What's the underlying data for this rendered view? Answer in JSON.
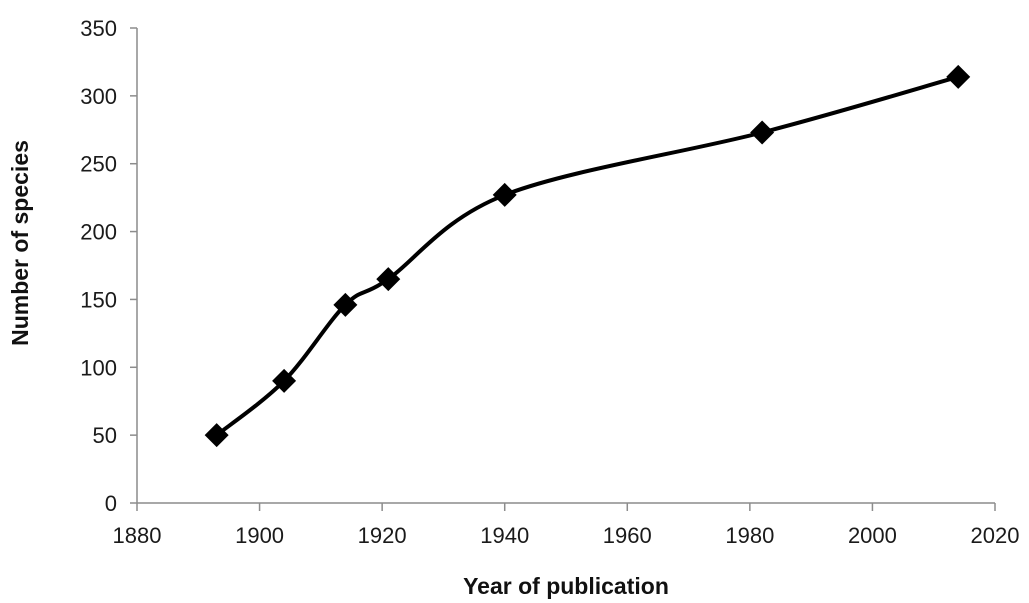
{
  "chart_data": {
    "type": "line",
    "title": "",
    "xlabel": "Year of publication",
    "ylabel": "Number of species",
    "xlim": [
      1880,
      2020
    ],
    "ylim": [
      0,
      350
    ],
    "x_ticks": [
      1880,
      1900,
      1920,
      1940,
      1960,
      1980,
      2000,
      2020
    ],
    "y_ticks": [
      0,
      50,
      100,
      150,
      200,
      250,
      300,
      350
    ],
    "grid": false,
    "legend": "none",
    "smooth": true,
    "marker": "diamond",
    "line_color": "#000000",
    "series": [
      {
        "x": [
          1893,
          1904,
          1914,
          1921,
          1940,
          1982,
          2014
        ],
        "y": [
          50,
          90,
          146,
          165,
          227,
          273,
          314
        ]
      }
    ]
  }
}
